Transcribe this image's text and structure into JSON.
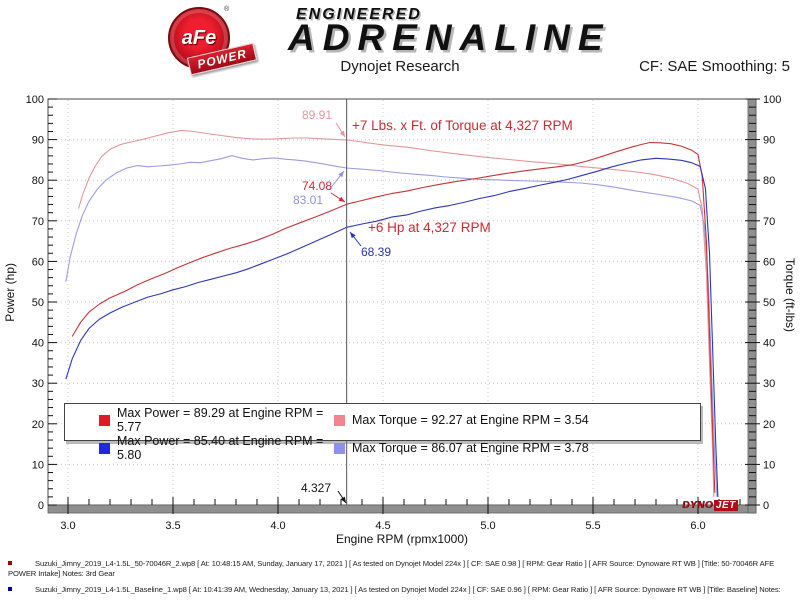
{
  "header": {
    "brand": {
      "badge_text": "aFe",
      "badge_trademark": "®",
      "ribbon_text": "POWER",
      "line1": "ENGINEERED",
      "line2": "ADRENALINE"
    },
    "report_title": "Dynojet Research",
    "cf_label": "CF: SAE Smoothing: 5"
  },
  "dynojet_logo": {
    "text_left": "DYNO",
    "text_right": "JET"
  },
  "annotations": {
    "torque_gain": {
      "text": "+7 Lbs. x Ft. of Torque at 4,327 RPM",
      "color": "#cc2936"
    },
    "power_gain": {
      "text": "+6 Hp at 4,327 RPM",
      "color": "#cc2936"
    },
    "torque_intake_value": {
      "text": "89.91",
      "color": "#e8959a"
    },
    "torque_baseline_value": {
      "text": "83.01",
      "color": "#8e93dd"
    },
    "power_intake_value": {
      "text": "74.08",
      "color": "#cc2936"
    },
    "power_baseline_value": {
      "text": "68.39",
      "color": "#2636a8"
    },
    "cursor_value": {
      "text": "4.327",
      "color": "#111111"
    }
  },
  "legend": {
    "items": [
      {
        "label": "Max Power = 89.29 at Engine RPM = 5.77",
        "color": "#e11b23"
      },
      {
        "label": "Max Torque = 92.27 at Engine RPM = 3.54",
        "color": "#f2858d"
      },
      {
        "label": "Max Power = 85.40 at Engine RPM = 5.80",
        "color": "#2126e0"
      },
      {
        "label": "Max Torque = 86.07 at Engine RPM = 3.78",
        "color": "#8d90ee"
      }
    ]
  },
  "footer": {
    "entries": [
      {
        "bullet_color": "#a50000",
        "lines": [
          "Suzuki_Jimny_2019_L4-1.5L_50-70046R_2.wp8 [ At: 10:48:15 AM, Sunday, January 17, 2021 ] [ As tested on Dynojet Model 224x ] [ CF: SAE 0.98 ] [ RPM: Gear Ratio ] [ AFR Source: Dynoware RT WB ] [Title: 50-70046R AFE",
          "POWER Intake]  Notes: 3rd Gear"
        ]
      },
      {
        "bullet_color": "#0000a5",
        "lines": [
          "Suzuki_Jimny_2019_L4-1.5L_Baseline_1.wp8 [ At: 10:41:39 AM, Wednesday, January 13, 2021 ] [ As tested on Dynojet Model 224x ] [ CF: SAE 0.96 ] [ RPM: Gear Ratio ] [ AFR Source: Dynoware RT WB ] [Title: Baseline]  Notes:"
        ]
      }
    ]
  },
  "chart_data": {
    "type": "line",
    "title": "Dynojet Research",
    "xlabel": "Engine RPM (rpmx1000)",
    "ylabel_left": "Power (hp)",
    "ylabel_right": "Torque (ft-lbs)",
    "x_axis": {
      "min": 3.0,
      "max": 6.0,
      "major": 0.5,
      "minor": 0.1,
      "plot_min": 2.9,
      "plot_max": 6.27
    },
    "y_axis": {
      "min": 0,
      "max": 100,
      "major": 10,
      "minor": 2
    },
    "grid": "dotted-major",
    "legend_position": "bottom-inside",
    "cursor_rpm": 4.327,
    "cursor_values": {
      "torque_intake": 89.91,
      "torque_baseline": 83.01,
      "power_intake": 74.08,
      "power_baseline": 68.39
    },
    "gains_at_cursor": {
      "torque_ftlbs": 7,
      "power_hp": 6
    },
    "series": [
      {
        "id": "torque_intake",
        "name": "Torque - 50-70046R AFE POWER Intake",
        "unit": "ft-lbs",
        "color": "#e59598",
        "max": {
          "value": 92.27,
          "rpm": 3.54
        },
        "points": [
          [
            3.05,
            73.0
          ],
          [
            3.07,
            76.5
          ],
          [
            3.1,
            80.5
          ],
          [
            3.13,
            83.5
          ],
          [
            3.16,
            85.8
          ],
          [
            3.2,
            87.6
          ],
          [
            3.25,
            88.8
          ],
          [
            3.3,
            89.4
          ],
          [
            3.36,
            90.1
          ],
          [
            3.42,
            90.9
          ],
          [
            3.48,
            91.7
          ],
          [
            3.54,
            92.27
          ],
          [
            3.6,
            92.0
          ],
          [
            3.66,
            91.5
          ],
          [
            3.73,
            91.0
          ],
          [
            3.8,
            90.5
          ],
          [
            3.87,
            90.2
          ],
          [
            3.94,
            90.1
          ],
          [
            4.0,
            90.2
          ],
          [
            4.07,
            90.4
          ],
          [
            4.14,
            90.4
          ],
          [
            4.21,
            90.2
          ],
          [
            4.28,
            90.0
          ],
          [
            4.327,
            89.91
          ],
          [
            4.4,
            89.4
          ],
          [
            4.5,
            88.7
          ],
          [
            4.62,
            88.1
          ],
          [
            4.74,
            87.2
          ],
          [
            4.86,
            86.4
          ],
          [
            4.98,
            85.7
          ],
          [
            5.1,
            85.1
          ],
          [
            5.22,
            84.5
          ],
          [
            5.34,
            84.0
          ],
          [
            5.46,
            83.3
          ],
          [
            5.58,
            82.7
          ],
          [
            5.68,
            82.2
          ],
          [
            5.78,
            81.5
          ],
          [
            5.88,
            80.4
          ],
          [
            5.95,
            79.2
          ],
          [
            6.0,
            77.8
          ],
          [
            6.02,
            73.0
          ],
          [
            6.04,
            57.0
          ],
          [
            6.055,
            35.0
          ],
          [
            6.07,
            13.0
          ],
          [
            6.075,
            2.0
          ]
        ]
      },
      {
        "id": "torque_baseline",
        "name": "Torque - Baseline",
        "unit": "ft-lbs",
        "color": "#9a9de0",
        "max": {
          "value": 86.07,
          "rpm": 3.78
        },
        "points": [
          [
            2.99,
            55.0
          ],
          [
            3.01,
            61.0
          ],
          [
            3.04,
            67.0
          ],
          [
            3.07,
            71.5
          ],
          [
            3.1,
            74.8
          ],
          [
            3.14,
            77.8
          ],
          [
            3.18,
            80.0
          ],
          [
            3.23,
            81.8
          ],
          [
            3.28,
            83.0
          ],
          [
            3.33,
            83.6
          ],
          [
            3.38,
            83.3
          ],
          [
            3.43,
            83.5
          ],
          [
            3.48,
            83.7
          ],
          [
            3.53,
            84.0
          ],
          [
            3.58,
            84.4
          ],
          [
            3.63,
            84.3
          ],
          [
            3.68,
            84.8
          ],
          [
            3.73,
            85.3
          ],
          [
            3.78,
            86.07
          ],
          [
            3.83,
            85.4
          ],
          [
            3.88,
            85.0
          ],
          [
            3.93,
            85.3
          ],
          [
            3.98,
            85.5
          ],
          [
            4.03,
            85.2
          ],
          [
            4.08,
            85.0
          ],
          [
            4.13,
            84.7
          ],
          [
            4.18,
            84.3
          ],
          [
            4.23,
            83.9
          ],
          [
            4.28,
            83.4
          ],
          [
            4.327,
            83.01
          ],
          [
            4.4,
            82.7
          ],
          [
            4.48,
            82.4
          ],
          [
            4.56,
            81.9
          ],
          [
            4.64,
            81.5
          ],
          [
            4.72,
            81.2
          ],
          [
            4.8,
            80.8
          ],
          [
            4.88,
            80.5
          ],
          [
            4.96,
            80.2
          ],
          [
            5.04,
            80.1
          ],
          [
            5.12,
            79.9
          ],
          [
            5.2,
            79.8
          ],
          [
            5.28,
            79.7
          ],
          [
            5.36,
            79.5
          ],
          [
            5.44,
            79.3
          ],
          [
            5.52,
            78.9
          ],
          [
            5.6,
            78.3
          ],
          [
            5.7,
            77.4
          ],
          [
            5.8,
            76.6
          ],
          [
            5.9,
            75.8
          ],
          [
            5.97,
            74.9
          ],
          [
            6.01,
            73.8
          ],
          [
            6.03,
            69.0
          ],
          [
            6.05,
            54.0
          ],
          [
            6.065,
            32.0
          ],
          [
            6.08,
            12.0
          ],
          [
            6.09,
            2.0
          ]
        ]
      },
      {
        "id": "power_intake",
        "name": "Power - 50-70046R AFE POWER Intake",
        "unit": "hp",
        "color": "#c53438",
        "max": {
          "value": 89.29,
          "rpm": 5.77
        },
        "points": [
          [
            3.02,
            41.5
          ],
          [
            3.06,
            45.0
          ],
          [
            3.1,
            47.5
          ],
          [
            3.15,
            49.5
          ],
          [
            3.2,
            51.0
          ],
          [
            3.27,
            52.6
          ],
          [
            3.33,
            54.2
          ],
          [
            3.4,
            55.8
          ],
          [
            3.46,
            57.0
          ],
          [
            3.52,
            58.4
          ],
          [
            3.58,
            59.7
          ],
          [
            3.64,
            60.9
          ],
          [
            3.7,
            62.0
          ],
          [
            3.77,
            63.2
          ],
          [
            3.84,
            64.2
          ],
          [
            3.9,
            65.2
          ],
          [
            3.97,
            66.6
          ],
          [
            4.03,
            68.0
          ],
          [
            4.1,
            69.4
          ],
          [
            4.17,
            70.8
          ],
          [
            4.24,
            72.2
          ],
          [
            4.327,
            74.08
          ],
          [
            4.4,
            75.0
          ],
          [
            4.47,
            75.9
          ],
          [
            4.54,
            76.7
          ],
          [
            4.61,
            77.3
          ],
          [
            4.69,
            78.2
          ],
          [
            4.77,
            79.0
          ],
          [
            4.85,
            79.7
          ],
          [
            4.93,
            80.3
          ],
          [
            5.01,
            81.0
          ],
          [
            5.09,
            81.7
          ],
          [
            5.17,
            82.3
          ],
          [
            5.25,
            82.8
          ],
          [
            5.33,
            83.3
          ],
          [
            5.4,
            83.8
          ],
          [
            5.47,
            84.7
          ],
          [
            5.54,
            85.8
          ],
          [
            5.61,
            87.0
          ],
          [
            5.68,
            88.1
          ],
          [
            5.73,
            88.8
          ],
          [
            5.77,
            89.29
          ],
          [
            5.82,
            89.2
          ],
          [
            5.87,
            89.0
          ],
          [
            5.92,
            88.4
          ],
          [
            5.97,
            87.4
          ],
          [
            6.0,
            86.3
          ],
          [
            6.02,
            81.0
          ],
          [
            6.04,
            65.0
          ],
          [
            6.055,
            42.0
          ],
          [
            6.07,
            18.0
          ],
          [
            6.08,
            3.0
          ]
        ]
      },
      {
        "id": "power_baseline",
        "name": "Power - Baseline",
        "unit": "hp",
        "color": "#2e36b8",
        "max": {
          "value": 85.4,
          "rpm": 5.8
        },
        "points": [
          [
            2.99,
            31.0
          ],
          [
            3.02,
            36.0
          ],
          [
            3.06,
            40.5
          ],
          [
            3.1,
            43.5
          ],
          [
            3.15,
            45.8
          ],
          [
            3.2,
            47.3
          ],
          [
            3.26,
            48.8
          ],
          [
            3.32,
            50.0
          ],
          [
            3.38,
            51.2
          ],
          [
            3.44,
            52.0
          ],
          [
            3.5,
            53.0
          ],
          [
            3.56,
            53.8
          ],
          [
            3.62,
            54.8
          ],
          [
            3.68,
            55.6
          ],
          [
            3.74,
            56.4
          ],
          [
            3.8,
            57.2
          ],
          [
            3.86,
            58.2
          ],
          [
            3.92,
            59.4
          ],
          [
            3.98,
            60.6
          ],
          [
            4.05,
            62.0
          ],
          [
            4.12,
            63.6
          ],
          [
            4.19,
            65.2
          ],
          [
            4.26,
            66.8
          ],
          [
            4.327,
            68.39
          ],
          [
            4.4,
            69.2
          ],
          [
            4.47,
            69.9
          ],
          [
            4.54,
            70.9
          ],
          [
            4.61,
            71.4
          ],
          [
            4.68,
            72.4
          ],
          [
            4.75,
            73.2
          ],
          [
            4.82,
            73.8
          ],
          [
            4.89,
            74.6
          ],
          [
            4.96,
            75.5
          ],
          [
            5.03,
            76.2
          ],
          [
            5.1,
            77.2
          ],
          [
            5.17,
            77.9
          ],
          [
            5.24,
            78.7
          ],
          [
            5.31,
            79.4
          ],
          [
            5.38,
            80.2
          ],
          [
            5.45,
            81.2
          ],
          [
            5.52,
            82.2
          ],
          [
            5.59,
            83.3
          ],
          [
            5.66,
            84.2
          ],
          [
            5.73,
            85.0
          ],
          [
            5.8,
            85.4
          ],
          [
            5.86,
            85.2
          ],
          [
            5.92,
            84.9
          ],
          [
            5.97,
            84.3
          ],
          [
            6.01,
            83.4
          ],
          [
            6.035,
            78.0
          ],
          [
            6.055,
            62.0
          ],
          [
            6.07,
            38.0
          ],
          [
            6.085,
            14.0
          ],
          [
            6.095,
            2.0
          ]
        ]
      }
    ]
  }
}
